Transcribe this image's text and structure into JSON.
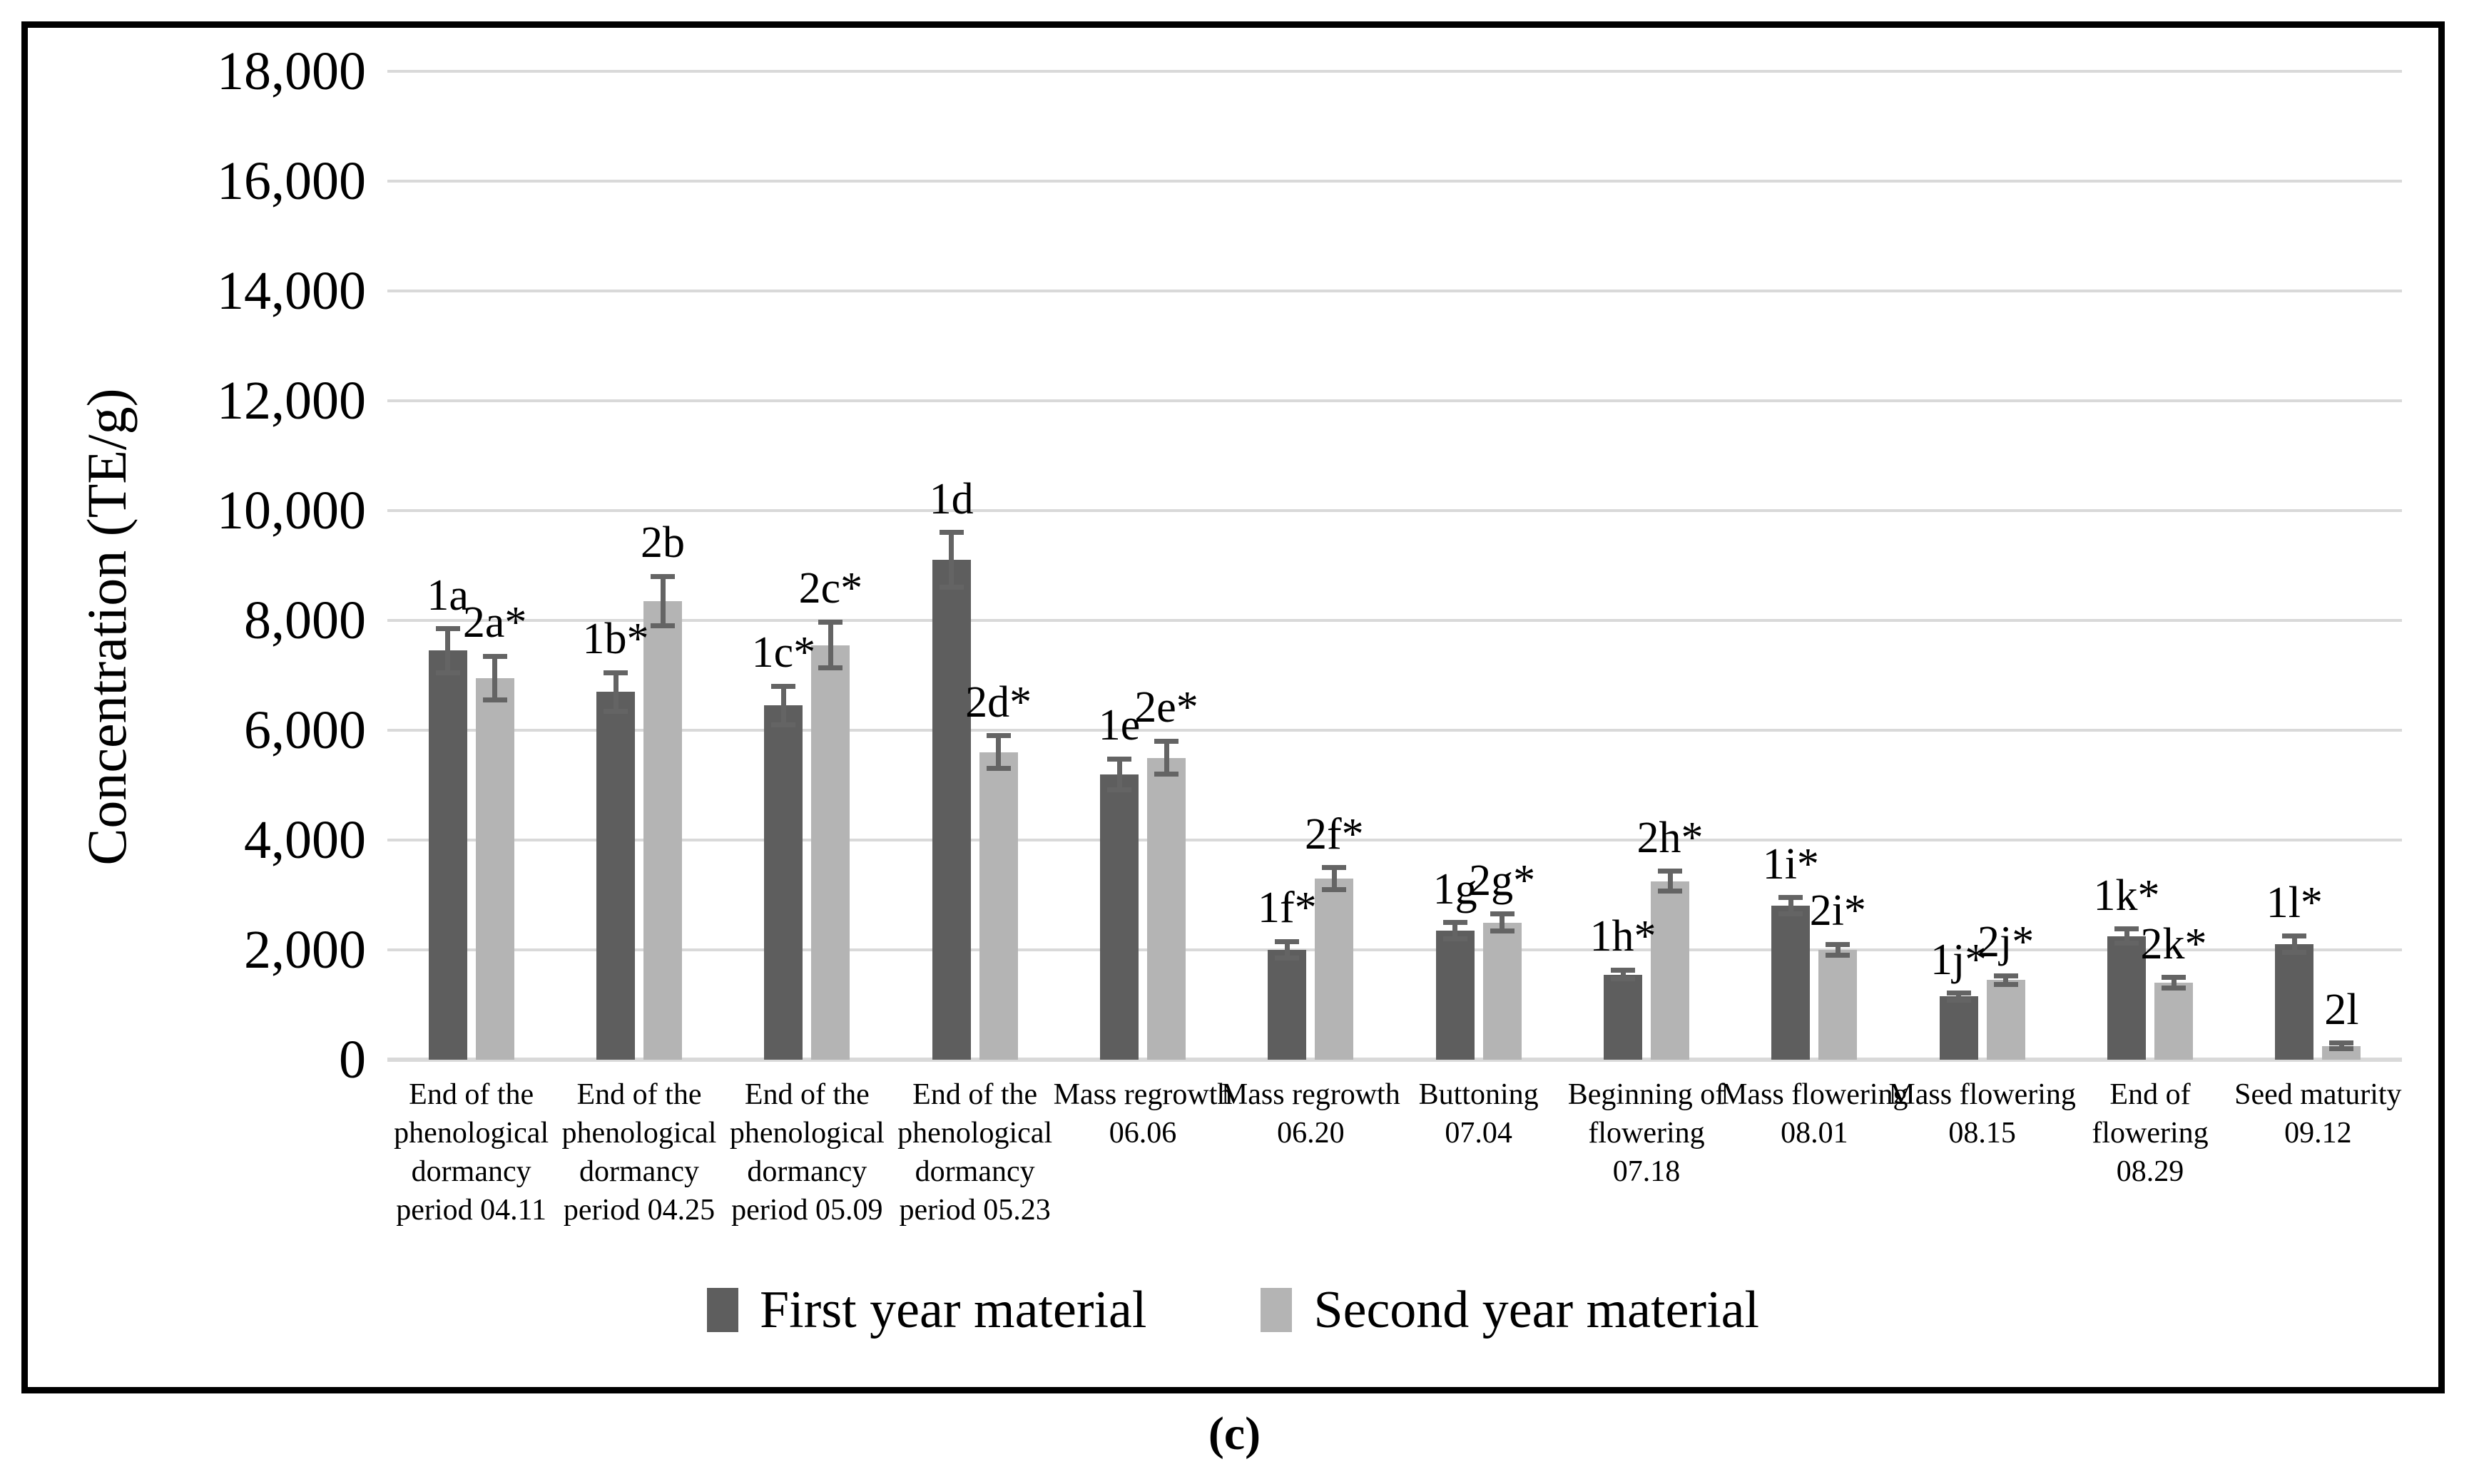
{
  "caption": "(c)",
  "chart_data": {
    "type": "bar",
    "title": "",
    "xlabel": "",
    "ylabel": "Concentration (TE/g)",
    "ylim": [
      0,
      18000
    ],
    "y_tick_step": 2000,
    "y_tick_labels": [
      "0",
      "2,000",
      "4,000",
      "6,000",
      "8,000",
      "10,000",
      "12,000",
      "14,000",
      "16,000",
      "18,000"
    ],
    "grid": "horizontal",
    "legend_position": "bottom",
    "gridline_color": "#d9d9d9",
    "error_bar_color": "#646464",
    "categories": [
      "End of the phenological dormancy period 04.11",
      "End of the phenological dormancy period 04.25",
      "End of the phenological dormancy period 05.09",
      "End of the phenological dormancy period 05.23",
      "Mass regrowth 06.06",
      "Mass regrowth 06.20",
      "Buttoning 07.04",
      "Beginning of flowering 07.18",
      "Mass flowering 08.01",
      "Mass flowering 08.15",
      "End of flowering 08.29",
      "Seed maturity 09.12"
    ],
    "category_lines": [
      [
        "End of the",
        "phenological",
        "dormancy",
        "period 04.11"
      ],
      [
        "End of the",
        "phenological",
        "dormancy",
        "period 04.25"
      ],
      [
        "End of the",
        "phenological",
        "dormancy",
        "period 05.09"
      ],
      [
        "End of the",
        "phenological",
        "dormancy",
        "period 05.23"
      ],
      [
        "Mass regrowth",
        "06.06"
      ],
      [
        "Mass regrowth",
        "06.20"
      ],
      [
        "Buttoning 07.04"
      ],
      [
        "Beginning of",
        "flowering 07.18"
      ],
      [
        "Mass flowering",
        "08.01"
      ],
      [
        "Mass flowering",
        "08.15"
      ],
      [
        "End of",
        "flowering 08.29"
      ],
      [
        "Seed maturity",
        "09.12"
      ]
    ],
    "series": [
      {
        "name": "First year material",
        "color": "#5e5e5e",
        "values": [
          7450,
          6700,
          6450,
          9100,
          5200,
          2000,
          2350,
          1550,
          2800,
          1150,
          2250,
          2100
        ],
        "errors": [
          400,
          350,
          350,
          500,
          280,
          150,
          150,
          80,
          150,
          60,
          130,
          150
        ],
        "point_labels": [
          "1a",
          "1b*",
          "1c*",
          "1d",
          "1e",
          "1f*",
          "1g",
          "1h*",
          "1i*",
          "1j*",
          "1k*",
          "1l*"
        ]
      },
      {
        "name": "Second year material",
        "color": "#b4b4b4",
        "values": [
          6950,
          8350,
          7550,
          5600,
          5500,
          3300,
          2500,
          3250,
          2000,
          1450,
          1400,
          250
        ],
        "errors": [
          400,
          450,
          420,
          300,
          300,
          200,
          150,
          180,
          100,
          80,
          100,
          50
        ],
        "point_labels": [
          "2a*",
          "2b",
          "2c*",
          "2d*",
          "2e*",
          "2f*",
          "2g*",
          "2h*",
          "2i*",
          "2j*",
          "2k*",
          "2l"
        ]
      }
    ]
  }
}
